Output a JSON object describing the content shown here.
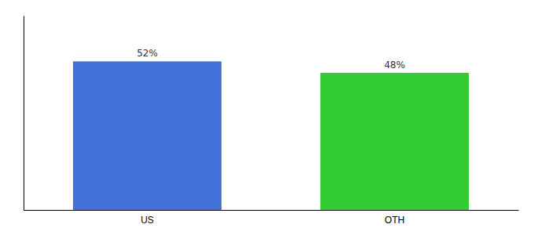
{
  "chart_data": {
    "type": "bar",
    "categories": [
      "US",
      "OTH"
    ],
    "values": [
      52,
      48
    ],
    "value_labels": [
      "52%",
      "48%"
    ],
    "colors": [
      "#4472db",
      "#33cc33"
    ],
    "ylim": [
      0,
      68
    ],
    "data_labels": true,
    "tick_labels": "x",
    "grid": false
  }
}
